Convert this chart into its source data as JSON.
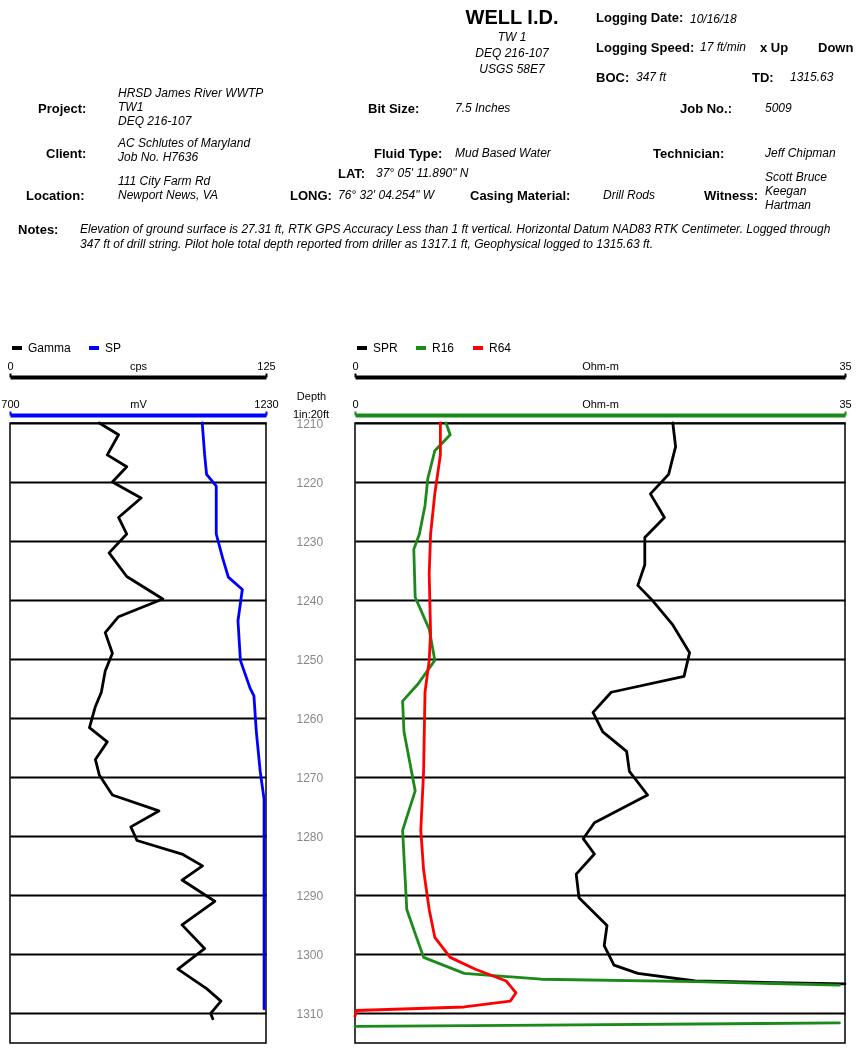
{
  "chart_data": [
    {
      "type": "other",
      "title": "WELL I.D.",
      "annotations": [
        "TW 1",
        "DEQ 216-107",
        "USGS 58E7",
        "Logging Date:",
        "10/16/18",
        "Logging Speed:",
        "17 ft/min",
        "x Up",
        "Down",
        "BOC:",
        "347 ft",
        "TD:",
        "1315.63",
        "Project:",
        "HRSD James River WWTP",
        "TW1",
        "DEQ 216-107",
        "Bit Size:",
        "7.5 Inches",
        "Job No.:",
        "5009",
        "Client:",
        "AC Schlutes of Maryland",
        "Job No. H7636",
        "Fluid Type:",
        "Mud Based Water",
        "Technician:",
        "Jeff Chipman",
        "LAT:",
        "37° 05' 11.890\" N",
        "Location:",
        "111 City Farm Rd",
        "Newport News, VA",
        "LONG:",
        "76° 32' 04.254\" W",
        "Casing Material:",
        "Drill Rods",
        "Witness:",
        "Scott Bruce",
        "Keegan",
        "Hartman",
        "Notes:",
        "Elevation of ground surface is 27.31 ft, RTK GPS Accuracy Less than 1 ft vertical. Horizontal Datum NAD83 RTK Centimeter. Logged through 347 ft of drill string. Pilot hole total depth reported from driller as 1317.1 ft, Geophysical logged to 1315.63 ft."
      ]
    },
    {
      "type": "line",
      "orientation": "horizontal",
      "xlabel": "cps",
      "x2label": "mV",
      "ylabel": "Depth",
      "annotations": [
        "1in:20ft"
      ],
      "xlim": [
        0,
        125
      ],
      "xticks": [
        0,
        125
      ],
      "x2lim": [
        700,
        1230
      ],
      "x2ticks": [
        700,
        1230
      ],
      "ylim": [
        1315,
        1210
      ],
      "yticks": [
        1210,
        1220,
        1230,
        1240,
        1250,
        1260,
        1270,
        1280,
        1290,
        1300,
        1310
      ],
      "grid": "y",
      "legend": "top",
      "series": [
        {
          "name": "Gamma",
          "color": "#000000",
          "x": [
            1210,
            1212,
            1215.4,
            1217.4,
            1220,
            1222.7,
            1226,
            1228.8,
            1232,
            1236,
            1239.8,
            1242.8,
            1245.5,
            1249,
            1252,
            1255.6,
            1258,
            1261.6,
            1264,
            1267,
            1269.6,
            1273,
            1275.7,
            1278.4,
            1280.7,
            1283,
            1285,
            1287.4,
            1291,
            1295,
            1299,
            1302.5,
            1305.8,
            1307.9,
            1310,
            1310.9
          ],
          "values": [
            43.6,
            53,
            47.5,
            57,
            50,
            64,
            53,
            57,
            48.4,
            57,
            74.6,
            53,
            46.5,
            50,
            46.5,
            44.6,
            41.7,
            38.8,
            47.5,
            41.7,
            43.6,
            50,
            72.7,
            59,
            62,
            84,
            94,
            84,
            100,
            84,
            95,
            82,
            96,
            103,
            98,
            99
          ]
        },
        {
          "name": "SP",
          "color": "#0000ff",
          "axis": "x2",
          "x": [
            1210,
            1215.4,
            1218.7,
            1220.7,
            1226,
            1228.8,
            1232.8,
            1236.1,
            1238.2,
            1243.5,
            1250.2,
            1254.9,
            1256.2,
            1262.3,
            1269,
            1273.7,
            1274.7,
            1309.2
          ],
          "values": [
            1098,
            1103,
            1107,
            1127,
            1127,
            1127,
            1140,
            1152,
            1181,
            1172,
            1177,
            1197,
            1205,
            1210,
            1218,
            1226,
            1226,
            1226
          ]
        }
      ]
    },
    {
      "type": "line",
      "orientation": "horizontal",
      "xlabel": "Ohm-m",
      "x2label": "Ohm-m",
      "xlim": [
        0,
        35
      ],
      "xticks": [
        0,
        35
      ],
      "x2lim": [
        0,
        35
      ],
      "x2ticks": [
        0,
        35
      ],
      "ylim": [
        1315,
        1210
      ],
      "yticks": [
        1210,
        1220,
        1230,
        1240,
        1250,
        1260,
        1270,
        1280,
        1290,
        1300,
        1310
      ],
      "grid": "y",
      "legend": "top",
      "tick_labels": "x",
      "series": [
        {
          "name": "SPR",
          "color": "#000000",
          "x": [
            1210,
            1214,
            1218.7,
            1222,
            1226,
            1229.4,
            1234,
            1237.5,
            1240.2,
            1244.2,
            1248.9,
            1252.9,
            1255.6,
            1259,
            1262.3,
            1265.6,
            1269,
            1273,
            1277.7,
            1280.4,
            1283,
            1286.4,
            1290.4,
            1295.1,
            1298.5,
            1301.8,
            1303.2,
            1304.5,
            1305
          ],
          "values": [
            22.7,
            22.9,
            22.4,
            21.1,
            22.1,
            20.7,
            20.7,
            20.2,
            21.3,
            22.7,
            23.9,
            23.5,
            18.3,
            17.0,
            17.7,
            19.4,
            19.6,
            20.9,
            17.1,
            16.3,
            17.1,
            15.8,
            16.0,
            18.0,
            17.8,
            18.5,
            20.2,
            24.3,
            35
          ]
        },
        {
          "name": "R16",
          "color": "#1a8a1a",
          "axis": "x2",
          "x": [
            1210,
            1212,
            1214.7,
            1219.4,
            1224,
            1228.8,
            1231.4,
            1239.5,
            1244.9,
            1250.2,
            1254.2,
            1257.1,
            1262.3,
            1272.3,
            1279,
            1292.4,
            1295.8,
            1300.5,
            1303.2,
            1304.2,
            1304.6,
            1305.2,
            1308,
            1311.6,
            1312.2
          ],
          "values": [
            6.5,
            6.8,
            5.7,
            5.2,
            5.0,
            4.6,
            4.2,
            4.3,
            5.3,
            5.7,
            4.5,
            3.4,
            3.5,
            4.3,
            3.4,
            3.7,
            4.2,
            4.9,
            7.8,
            13.3,
            24.3,
            34.6,
            null,
            34.6,
            0
          ]
        },
        {
          "name": "R64",
          "color": "#ff0000",
          "axis": "x2",
          "x": [
            1210,
            1215.4,
            1222,
            1228.8,
            1235.5,
            1245.5,
            1250.2,
            1255.6,
            1269,
            1279,
            1285.7,
            1292.4,
            1297.1,
            1300.5,
            1302.5,
            1304.5,
            1306.5,
            1307.9,
            1308.9,
            1309.5,
            1310.5
          ],
          "values": [
            6.1,
            6.1,
            5.7,
            5.4,
            5.3,
            5.4,
            5.3,
            5.0,
            4.9,
            4.7,
            4.9,
            5.3,
            5.7,
            6.8,
            8.6,
            10.8,
            11.5,
            11.1,
            7.8,
            0.1,
            0
          ]
        }
      ]
    }
  ]
}
